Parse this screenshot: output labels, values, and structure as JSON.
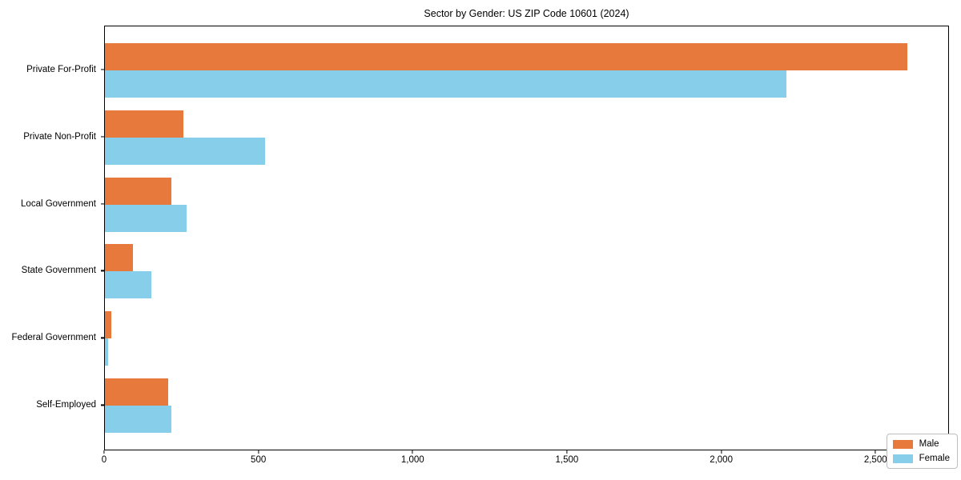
{
  "title": "Sector by Gender: US ZIP Code 10601 (2024)",
  "chart_data": {
    "type": "bar",
    "orientation": "horizontal",
    "title": "Sector by Gender: US ZIP Code 10601 (2024)",
    "categories": [
      "Private For-Profit",
      "Private Non-Profit",
      "Local Government",
      "State Government",
      "Federal Government",
      "Self-Employed"
    ],
    "series": [
      {
        "name": "Male",
        "color": "#E8793C",
        "values": [
          2600,
          255,
          215,
          90,
          22,
          205
        ]
      },
      {
        "name": "Female",
        "color": "#87CEEB",
        "values": [
          2210,
          520,
          265,
          150,
          10,
          215
        ]
      }
    ],
    "xlabel": "",
    "ylabel": "",
    "xlim": [
      0,
      2733
    ],
    "xticks": [
      0,
      500,
      1000,
      1500,
      2000,
      2500
    ],
    "xtick_labels": [
      "0",
      "500",
      "1,000",
      "1,500",
      "2,000",
      "2,500"
    ],
    "legend_position": "lower right",
    "grid": false,
    "bar_group_padding": 0.65,
    "bar_thickness_data_units": 0.4
  }
}
